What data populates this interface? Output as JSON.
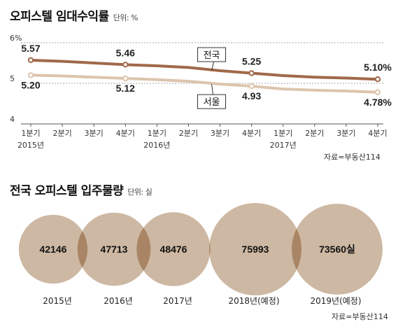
{
  "chart_data": [
    {
      "type": "line",
      "title": "오피스텔 임대수익률",
      "unit": "단위: %",
      "x_ticks": [
        "1분기",
        "2분기",
        "3분기",
        "4분기",
        "1분기",
        "2분기",
        "3분기",
        "4분기",
        "1분기",
        "2분기",
        "3분기",
        "4분기"
      ],
      "year_labels": [
        {
          "label": "2015년",
          "index": 0
        },
        {
          "label": "2016년",
          "index": 4
        },
        {
          "label": "2017년",
          "index": 8
        }
      ],
      "ylim": [
        4,
        6
      ],
      "y_ticks": [
        "6%",
        "5",
        "4"
      ],
      "series": [
        {
          "name": "전국",
          "color": "#a0694a",
          "values": [
            5.57,
            5.54,
            5.5,
            5.46,
            5.43,
            5.39,
            5.31,
            5.25,
            5.19,
            5.15,
            5.13,
            5.1
          ],
          "labeled_points": [
            {
              "index": 0,
              "text": "5.57"
            },
            {
              "index": 3,
              "text": "5.46"
            },
            {
              "index": 7,
              "text": "5.25"
            },
            {
              "index": 11,
              "text": "5.10%"
            }
          ]
        },
        {
          "name": "서울",
          "color": "#ddc4ad",
          "values": [
            5.2,
            5.18,
            5.15,
            5.12,
            5.09,
            5.05,
            4.98,
            4.93,
            4.86,
            4.83,
            4.81,
            4.78
          ],
          "labeled_points": [
            {
              "index": 0,
              "text": "5.20"
            },
            {
              "index": 3,
              "text": "5.12"
            },
            {
              "index": 7,
              "text": "4.93"
            },
            {
              "index": 11,
              "text": "4.78%"
            }
          ]
        }
      ],
      "source": "자료=부동산114"
    },
    {
      "type": "bubble",
      "title": "전국 오피스텔 입주물량",
      "unit": "단위: 실",
      "categories": [
        "2015년",
        "2016년",
        "2017년",
        "2018년(예정)",
        "2019년(예정)"
      ],
      "values": [
        42146,
        47713,
        48476,
        75993,
        73560
      ],
      "value_labels": [
        "42146",
        "47713",
        "48476",
        "75993",
        "73560실"
      ],
      "color": "#cdb8a3",
      "overlap_color": "#a98565",
      "source": "자료=부동산114"
    }
  ]
}
